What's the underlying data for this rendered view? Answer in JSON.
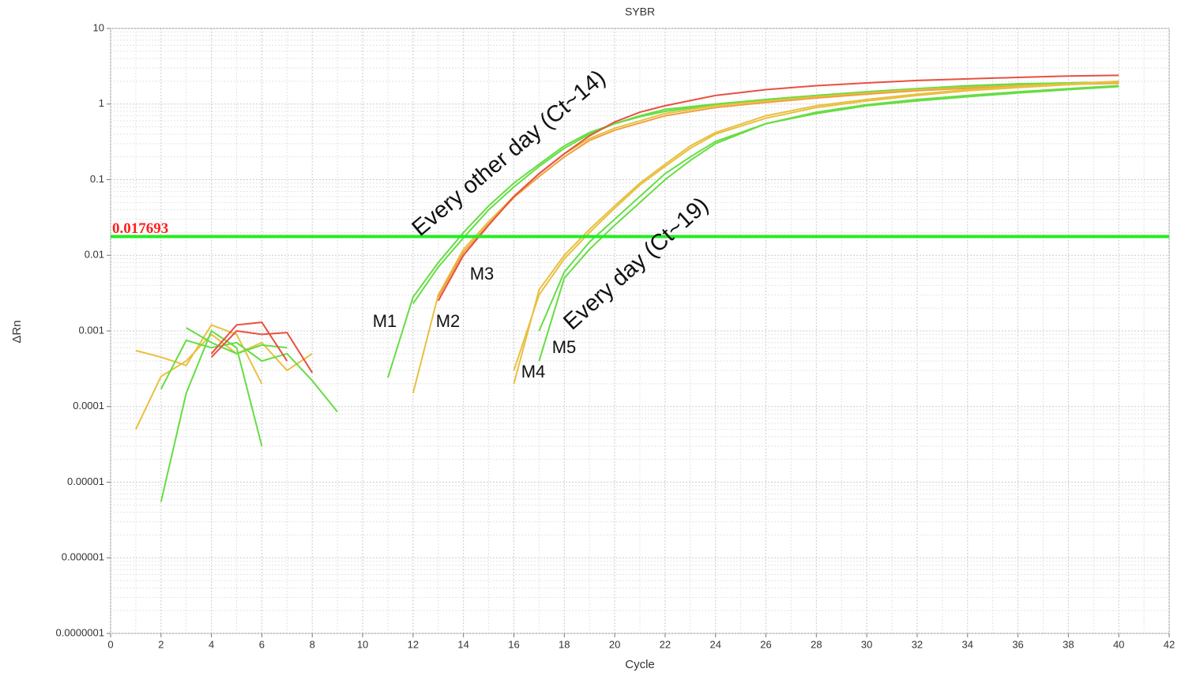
{
  "chart_data": {
    "type": "line",
    "title": "SYBR",
    "x_label": "Cycle",
    "y_label": "ΔRn",
    "log_y": true,
    "grid": true,
    "xlim": [
      0,
      42
    ],
    "xticks": [
      0,
      2,
      4,
      6,
      8,
      10,
      12,
      14,
      16,
      18,
      20,
      22,
      24,
      26,
      28,
      30,
      32,
      34,
      36,
      38,
      40,
      42
    ],
    "ylim": [
      1e-07,
      10
    ],
    "yticks": [
      {
        "value": 1e-07,
        "label": "0.0000001"
      },
      {
        "value": 1e-06,
        "label": "0.000001"
      },
      {
        "value": 1e-05,
        "label": "0.00001"
      },
      0.0001,
      0.001,
      0.01,
      0.1,
      1,
      10
    ],
    "threshold": {
      "value": 0.017693,
      "color": "#22ee22"
    },
    "annotations": [
      "Every other day (Ct~14)",
      "Every day (Ct~19)",
      "M1",
      "M2",
      "M3",
      "M4",
      "M5"
    ],
    "series": [
      {
        "color": "#e8c040",
        "x": [
          1,
          2,
          3,
          4,
          5,
          6
        ],
        "values": [
          0.00055,
          0.00045,
          0.00035,
          0.0012,
          0.0009,
          0.0002
        ]
      },
      {
        "color": "#e8c040",
        "x": [
          1,
          2,
          3,
          4,
          5,
          6,
          7,
          8
        ],
        "values": [
          5e-05,
          0.00025,
          0.0004,
          0.0009,
          0.0005,
          0.0007,
          0.0003,
          0.0005
        ]
      },
      {
        "color": "#66dd44",
        "x": [
          2,
          3,
          4,
          5,
          6
        ],
        "values": [
          5.5e-06,
          0.00015,
          0.001,
          0.0006,
          3e-05
        ]
      },
      {
        "color": "#66dd44",
        "x": [
          2,
          3,
          4,
          5,
          6,
          7,
          8,
          9
        ],
        "values": [
          0.00017,
          0.00075,
          0.0006,
          0.0007,
          0.0004,
          0.0005,
          0.00022,
          8.5e-05
        ]
      },
      {
        "color": "#66dd44",
        "x": [
          3,
          4,
          5,
          6,
          7
        ],
        "values": [
          0.0011,
          0.0007,
          0.0005,
          0.00065,
          0.0006
        ]
      },
      {
        "color": "#e85040",
        "x": [
          4,
          5,
          6,
          7
        ],
        "values": [
          0.0005,
          0.0012,
          0.0013,
          0.0004
        ]
      },
      {
        "color": "#e85040",
        "x": [
          4,
          5,
          6,
          7,
          8
        ],
        "values": [
          0.00045,
          0.001,
          0.0009,
          0.00095,
          0.00028
        ]
      },
      {
        "color": "#66dd44",
        "x": [
          11,
          12,
          13,
          14,
          15,
          16,
          17,
          18,
          19,
          20,
          21,
          22,
          24,
          26,
          28,
          30,
          32,
          34,
          36,
          38,
          40
        ],
        "values": [
          0.00024,
          0.0028,
          0.008,
          0.02,
          0.045,
          0.09,
          0.16,
          0.28,
          0.42,
          0.55,
          0.68,
          0.8,
          0.98,
          1.15,
          1.3,
          1.45,
          1.6,
          1.75,
          1.85,
          1.9,
          1.95
        ]
      },
      {
        "color": "#66dd44",
        "x": [
          12,
          13,
          14,
          15,
          16,
          17,
          18,
          19,
          20,
          21,
          22,
          24,
          26,
          28,
          30,
          32,
          34,
          36,
          38,
          40
        ],
        "values": [
          0.0023,
          0.007,
          0.017,
          0.04,
          0.08,
          0.15,
          0.26,
          0.4,
          0.55,
          0.7,
          0.85,
          1.0,
          1.15,
          1.3,
          1.45,
          1.6,
          1.72,
          1.82,
          1.9,
          1.95
        ]
      },
      {
        "color": "#e8c040",
        "x": [
          12,
          13,
          14,
          15,
          16,
          17,
          18,
          19,
          20,
          22,
          24,
          26,
          28,
          30,
          32,
          34,
          36,
          38,
          40
        ],
        "values": [
          0.00015,
          0.003,
          0.012,
          0.028,
          0.06,
          0.12,
          0.22,
          0.35,
          0.48,
          0.75,
          0.95,
          1.1,
          1.25,
          1.4,
          1.55,
          1.65,
          1.75,
          1.85,
          1.9
        ]
      },
      {
        "color": "#f0a040",
        "x": [
          13,
          14,
          15,
          16,
          17,
          18,
          19,
          20,
          22,
          24,
          26,
          28,
          30,
          32,
          34,
          36,
          38,
          40
        ],
        "values": [
          0.0028,
          0.011,
          0.026,
          0.058,
          0.11,
          0.2,
          0.33,
          0.45,
          0.7,
          0.9,
          1.05,
          1.2,
          1.35,
          1.5,
          1.62,
          1.72,
          1.82,
          1.88
        ]
      },
      {
        "color": "#e85040",
        "x": [
          13,
          14,
          15,
          16,
          17,
          18,
          19,
          20,
          21,
          22,
          24,
          26,
          28,
          30,
          32,
          34,
          36,
          38,
          40
        ],
        "values": [
          0.0025,
          0.01,
          0.025,
          0.06,
          0.12,
          0.22,
          0.38,
          0.58,
          0.78,
          0.95,
          1.3,
          1.55,
          1.75,
          1.9,
          2.05,
          2.15,
          2.25,
          2.35,
          2.4
        ]
      },
      {
        "color": "#e8c040",
        "x": [
          16,
          17,
          18,
          19,
          20,
          21,
          22,
          23,
          24,
          26,
          28,
          30,
          32,
          34,
          36,
          38,
          40
        ],
        "values": [
          0.0002,
          0.0035,
          0.01,
          0.022,
          0.045,
          0.09,
          0.16,
          0.28,
          0.42,
          0.7,
          0.95,
          1.15,
          1.35,
          1.55,
          1.7,
          1.85,
          2.0
        ]
      },
      {
        "color": "#e8c040",
        "x": [
          16,
          17,
          18,
          19,
          20,
          21,
          22,
          23,
          24,
          26,
          28,
          30,
          32,
          34,
          36,
          38,
          40
        ],
        "values": [
          0.0003,
          0.003,
          0.009,
          0.02,
          0.042,
          0.085,
          0.15,
          0.26,
          0.4,
          0.65,
          0.9,
          1.1,
          1.3,
          1.5,
          1.65,
          1.8,
          1.95
        ]
      },
      {
        "color": "#66dd44",
        "x": [
          17,
          18,
          19,
          20,
          21,
          22,
          23,
          24,
          26,
          28,
          30,
          32,
          34,
          36,
          38,
          40
        ],
        "values": [
          0.0004,
          0.005,
          0.012,
          0.025,
          0.05,
          0.1,
          0.18,
          0.3,
          0.55,
          0.75,
          0.95,
          1.1,
          1.25,
          1.4,
          1.55,
          1.7
        ]
      },
      {
        "color": "#66dd44",
        "x": [
          17,
          18,
          19,
          20,
          21,
          22,
          23,
          24,
          26,
          28,
          30,
          32,
          34,
          36,
          38,
          40
        ],
        "values": [
          0.001,
          0.006,
          0.015,
          0.03,
          0.06,
          0.12,
          0.2,
          0.32,
          0.55,
          0.78,
          0.98,
          1.15,
          1.3,
          1.45,
          1.6,
          1.75
        ]
      }
    ]
  }
}
